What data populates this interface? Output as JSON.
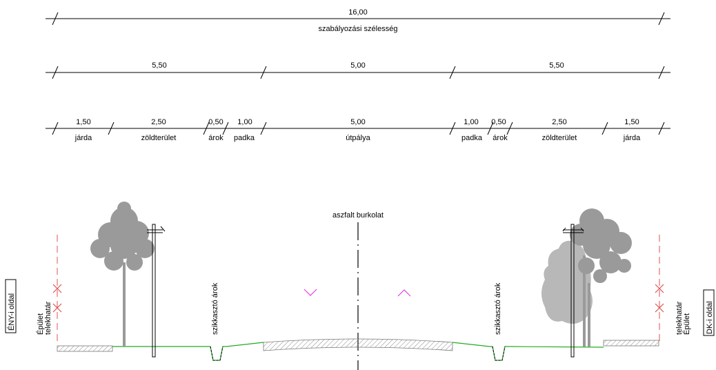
{
  "dimensions": {
    "total": {
      "value": "16,00",
      "label": "szabályozási szélesség"
    },
    "mid": [
      {
        "value": "5,50"
      },
      {
        "value": "5,00"
      },
      {
        "value": "5,50"
      }
    ],
    "detail": [
      {
        "value": "1,50",
        "label": "járda"
      },
      {
        "value": "2,50",
        "label": "zöldterület"
      },
      {
        "value": "0,50",
        "label": "árok"
      },
      {
        "value": "1,00",
        "label": "padka"
      },
      {
        "value": "5,00",
        "label": "útpálya"
      },
      {
        "value": "1,00",
        "label": "padka"
      },
      {
        "value": "0,50",
        "label": "árok"
      },
      {
        "value": "2,50",
        "label": "zöldterület"
      },
      {
        "value": "1,50",
        "label": "járda"
      }
    ]
  },
  "section": {
    "center_label": "aszfalt burkolat",
    "left_side_label": "ÉNY-i oldal",
    "right_side_label": "DK-i oldal",
    "left_building": "Épület",
    "left_plot": "telekhatár",
    "right_plot": "telekhatár",
    "right_building": "Épület",
    "ditch_left": "szikkasztó árok",
    "ditch_right": "szikkasztó árok"
  },
  "colors": {
    "line": "#000000",
    "ground": "#22aa22",
    "plot_line": "#e05050",
    "slope_marker": "#e040e0",
    "tree": "#9a9a9a"
  }
}
